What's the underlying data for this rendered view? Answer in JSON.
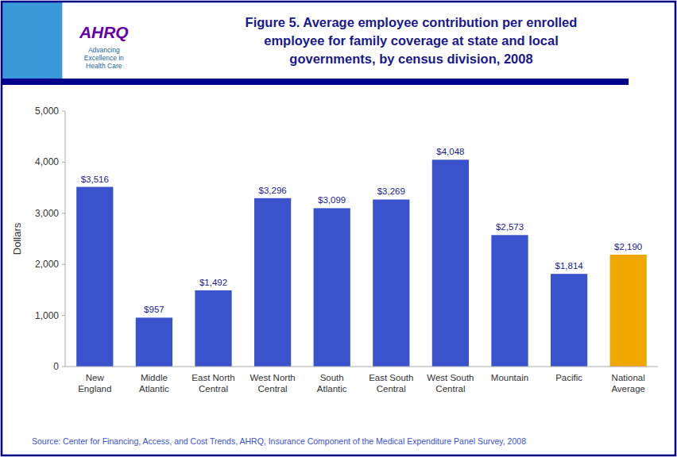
{
  "chart_data": {
    "type": "bar",
    "title": "Figure 5. Average employee contribution per enrolled\nemployee for family coverage at state and local\ngovernments, by census division, 2008",
    "categories": [
      "New\nEngland",
      "Middle\nAtlantic",
      "East North\nCentral",
      "West North\nCentral",
      "South\nAtlantic",
      "East South\nCentral",
      "West South\nCentral",
      "Mountain",
      "Pacific",
      "National\nAverage"
    ],
    "values": [
      3516,
      957,
      1492,
      3296,
      3099,
      3269,
      4048,
      2573,
      1814,
      2190
    ],
    "value_labels": [
      "$3,516",
      "$957",
      "$1,492",
      "$3,296",
      "$3,099",
      "$3,269",
      "$4,048",
      "$2,573",
      "$1,814",
      "$2,190"
    ],
    "colors": [
      "#3a52cc",
      "#3a52cc",
      "#3a52cc",
      "#3a52cc",
      "#3a52cc",
      "#3a52cc",
      "#3a52cc",
      "#3a52cc",
      "#3a52cc",
      "#f0a800"
    ],
    "data_labels": true,
    "ylabel": "Dollars",
    "ylim": [
      0,
      5000
    ],
    "yticks": [
      0,
      {
        "value": 1000,
        "label": "1,000"
      },
      {
        "value": 2000,
        "label": "2,000"
      },
      {
        "value": 3000,
        "label": "3,000"
      },
      {
        "value": 4000,
        "label": "4,000"
      },
      {
        "value": 5000,
        "label": "5,000"
      }
    ],
    "grid": false,
    "annotations": [
      "AHRQ",
      "Advancing\nExcellence in\nHealth Care"
    ],
    "source": "Source: Center for Financing, Access, and Cost Trends, AHRQ, Insurance Component of the Medical Expenditure Panel Survey, 2008"
  }
}
